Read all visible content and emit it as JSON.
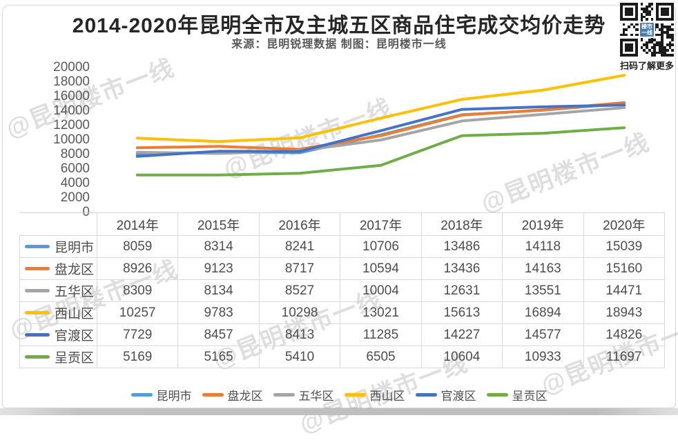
{
  "header": {
    "title": "2014-2020年昆明全市及主城五区商品住宅成交均价走势",
    "subtitle": "来源：昆明锐理数据 制图：昆明楼市一线"
  },
  "qr": {
    "caption": "扫码了解更多",
    "logo_top": "楼市",
    "logo_bottom": "一线"
  },
  "watermark": {
    "text": "@昆明楼市一线"
  },
  "chart_data": {
    "type": "line",
    "title": "2014-2020年昆明全市及主城五区商品住宅成交均价走势",
    "categories": [
      "2014年",
      "2015年",
      "2016年",
      "2017年",
      "2018年",
      "2019年",
      "2020年"
    ],
    "series": [
      {
        "name": "昆明市",
        "color": "#5B9BD5",
        "values": [
          8059,
          8314,
          8241,
          10706,
          13486,
          14118,
          15039
        ]
      },
      {
        "name": "盘龙区",
        "color": "#ED7D31",
        "values": [
          8926,
          9123,
          8717,
          10594,
          13436,
          14163,
          15160
        ]
      },
      {
        "name": "五华区",
        "color": "#A5A5A5",
        "values": [
          8309,
          8134,
          8527,
          10004,
          12631,
          13551,
          14471
        ]
      },
      {
        "name": "西山区",
        "color": "#FFC000",
        "values": [
          10257,
          9783,
          10298,
          13021,
          15613,
          16894,
          18943
        ]
      },
      {
        "name": "官渡区",
        "color": "#4472C4",
        "values": [
          7729,
          8457,
          8413,
          11285,
          14227,
          14577,
          14826
        ]
      },
      {
        "name": "呈贡区",
        "color": "#70AD47",
        "values": [
          5169,
          5165,
          5410,
          6505,
          10604,
          10933,
          11697
        ]
      }
    ],
    "xlabel": "",
    "ylabel": "",
    "ylim": [
      0,
      20000
    ],
    "yticks": [
      0,
      2000,
      4000,
      6000,
      8000,
      10000,
      12000,
      14000,
      16000,
      18000,
      20000
    ],
    "grid": false,
    "legend_position": "bottom",
    "data_table_shown": true
  }
}
